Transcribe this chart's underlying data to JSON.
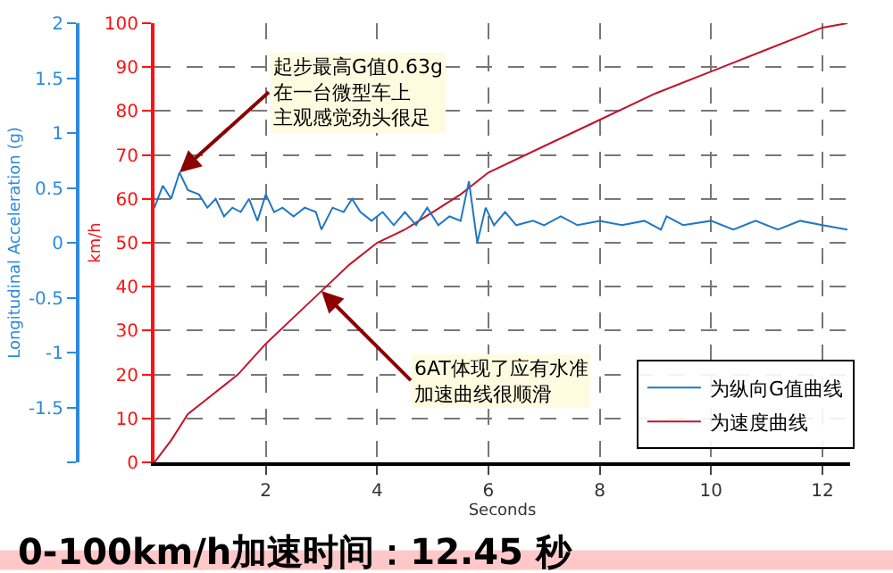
{
  "chart_data": {
    "type": "line",
    "title": "0-100km/h加速时间：12.45 秒",
    "xlabel": "Seconds",
    "ylabel": "km/h",
    "y2label": "Longitudinal Acceleration (g)",
    "xlim": [
      0,
      12.5
    ],
    "xticks": [
      2,
      4,
      6,
      8,
      10,
      12
    ],
    "ylim": [
      0,
      100
    ],
    "yticks": [
      0,
      10,
      20,
      30,
      40,
      50,
      60,
      70,
      80,
      90,
      100
    ],
    "y2lim": [
      -2,
      2
    ],
    "y2ticks": [
      {
        "value": -2,
        "label": null
      },
      -1.5,
      -1,
      -0.5,
      0,
      0.5,
      1,
      1.5,
      2
    ],
    "grid": true,
    "legend": "bottom right",
    "line_style": "solid",
    "marker": "none",
    "series": [
      {
        "name": "为纵向G值曲线",
        "color": "#1f77c4",
        "axis": "y2",
        "x": [
          0,
          0.15,
          0.3,
          0.45,
          0.6,
          0.8,
          0.95,
          1.1,
          1.25,
          1.4,
          1.55,
          1.7,
          1.85,
          2.0,
          2.15,
          2.3,
          2.5,
          2.7,
          2.9,
          3.0,
          3.2,
          3.4,
          3.55,
          3.7,
          3.9,
          4.1,
          4.3,
          4.5,
          4.7,
          4.9,
          5.1,
          5.3,
          5.5,
          5.65,
          5.8,
          5.95,
          6.1,
          6.3,
          6.5,
          6.8,
          7.0,
          7.3,
          7.6,
          8.0,
          8.4,
          8.8,
          9.1,
          9.2,
          9.5,
          10.0,
          10.4,
          10.8,
          11.2,
          11.6,
          12.0,
          12.45
        ],
        "values": [
          0.32,
          0.52,
          0.4,
          0.64,
          0.48,
          0.44,
          0.32,
          0.4,
          0.24,
          0.32,
          0.28,
          0.4,
          0.2,
          0.44,
          0.28,
          0.32,
          0.24,
          0.32,
          0.28,
          0.12,
          0.32,
          0.28,
          0.4,
          0.28,
          0.2,
          0.28,
          0.16,
          0.28,
          0.16,
          0.32,
          0.16,
          0.24,
          0.2,
          0.56,
          0.0,
          0.32,
          0.16,
          0.28,
          0.16,
          0.2,
          0.16,
          0.24,
          0.16,
          0.2,
          0.16,
          0.2,
          0.12,
          0.24,
          0.16,
          0.2,
          0.12,
          0.2,
          0.12,
          0.2,
          0.16,
          0.12
        ]
      },
      {
        "name": "为速度曲线",
        "color": "#c0142c",
        "axis": "y",
        "x": [
          0,
          0.3,
          0.6,
          1,
          1.5,
          2,
          2.5,
          3,
          3.5,
          4,
          4.5,
          5,
          5.5,
          6,
          7,
          8,
          9,
          10,
          11,
          12,
          12.45
        ],
        "values": [
          0,
          5,
          11,
          15,
          20,
          27,
          33,
          39,
          45,
          50,
          53,
          57,
          61,
          66,
          72,
          78,
          84,
          89,
          94,
          99,
          100
        ]
      }
    ],
    "annotations": [
      {
        "text": "起步最高G值0.63g在一台微型车上主观感觉劲头很足",
        "x": 0.45,
        "y": 66
      },
      {
        "text": "6AT体现了应有水准加速曲线很顺滑",
        "x": 3,
        "y": 39
      }
    ]
  }
}
